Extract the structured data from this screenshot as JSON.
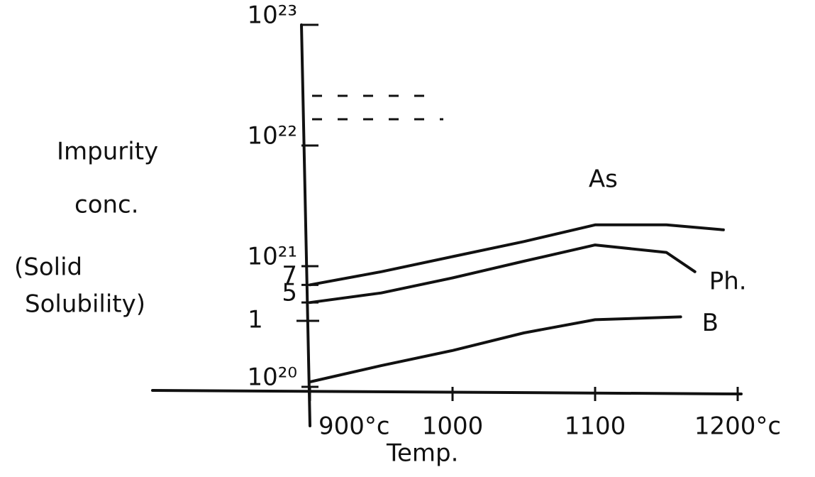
{
  "chart_data": {
    "type": "line",
    "log_y": true,
    "x_label": "Temp.",
    "y_label": [
      "Impurity",
      "conc.",
      "(Solid",
      "Solubility)"
    ],
    "xlim": [
      900,
      1200
    ],
    "xticks": [
      {
        "value": 900,
        "label": "900°c"
      },
      1000,
      1100,
      {
        "value": 1200,
        "label": "1200°c"
      }
    ],
    "ylim": [
      1e+20,
      1e+23
    ],
    "yticks": [
      {
        "value": 1e+20,
        "label": "10²⁰"
      },
      {
        "value": 5e+20,
        "label": "5"
      },
      {
        "value": 7e+20,
        "label": "7"
      },
      {
        "value": 1e+21,
        "label": "10²¹"
      },
      {
        "value": 1e+22,
        "label": "10²²"
      },
      {
        "value": 1e+23,
        "label": "10²³"
      }
    ],
    "annotations": [
      "1"
    ],
    "series": [
      {
        "name": "As",
        "color": "#111111",
        "x": [
          900,
          950,
          1000,
          1050,
          1100,
          1150,
          1190
        ],
        "values": [
          7e+20,
          9e+20,
          1.2e+21,
          1.6e+21,
          2.2e+21,
          2.2e+21,
          2e+21
        ]
      },
      {
        "name": "Ph.",
        "color": "#111111",
        "x": [
          900,
          950,
          1000,
          1050,
          1100,
          1150,
          1170
        ],
        "values": [
          5e+20,
          6e+20,
          8e+20,
          1.1e+21,
          1.5e+21,
          1.3e+21,
          9e+20
        ]
      },
      {
        "name": "B",
        "color": "#111111",
        "x": [
          900,
          950,
          1000,
          1050,
          1100,
          1160
        ],
        "values": [
          1.1e+20,
          1.5e+20,
          2e+20,
          2.8e+20,
          3.6e+20,
          3.8e+20
        ]
      }
    ]
  }
}
